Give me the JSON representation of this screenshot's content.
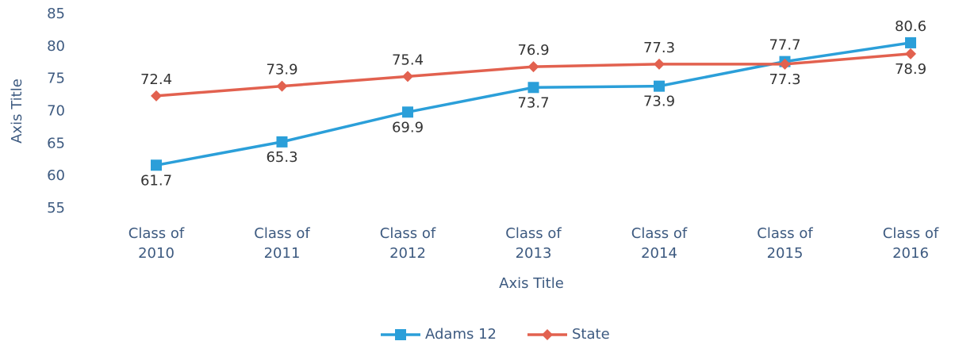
{
  "chart_data": {
    "type": "line",
    "categories": [
      "Class of 2010",
      "Class of 2011",
      "Class of 2012",
      "Class of 2013",
      "Class of 2014",
      "Class of 2015",
      "Class of 2016"
    ],
    "series": [
      {
        "name": "Adams 12",
        "color": "#2b9fd9",
        "marker": "square",
        "values": [
          61.7,
          65.3,
          69.9,
          73.7,
          73.9,
          77.7,
          80.6
        ]
      },
      {
        "name": "State",
        "color": "#e2614f",
        "marker": "diamond",
        "values": [
          72.4,
          73.9,
          75.4,
          76.9,
          77.3,
          77.3,
          78.9
        ]
      }
    ],
    "ylim": [
      55,
      85
    ],
    "yticks": [
      55,
      60,
      65,
      70,
      75,
      80,
      85
    ],
    "x_label": "Axis Title",
    "y_label": "Axis Title",
    "legend": "bottom"
  }
}
